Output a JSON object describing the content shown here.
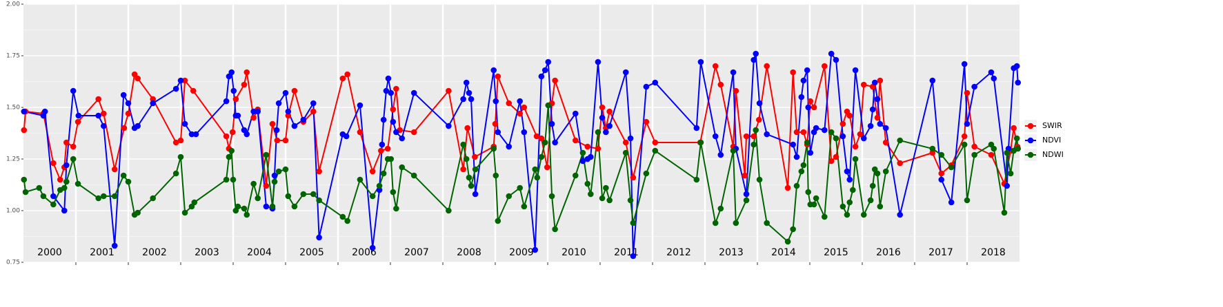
{
  "chart_data": {
    "type": "line",
    "xlim": [
      2000,
      2019
    ],
    "xticks": [
      2001,
      2002,
      2003,
      2004,
      2005,
      2006,
      2007,
      2008,
      2009,
      2010,
      2011,
      2012,
      2013,
      2014,
      2015,
      2016,
      2017,
      2018
    ],
    "year_labels": [
      "2000",
      "2001",
      "2002",
      "2003",
      "2004",
      "2005",
      "2006",
      "2007",
      "2008",
      "2009",
      "2010",
      "2011",
      "2012",
      "2013",
      "2014",
      "2015",
      "2016",
      "2017",
      "2018"
    ],
    "ylim": [
      0.75,
      2.0
    ],
    "yticks": [
      0.75,
      {
        "value": 1.0,
        "label": "1.00"
      },
      1.25,
      {
        "value": 1.5,
        "label": "1.50"
      },
      1.75,
      {
        "value": 2.0,
        "label": "2.00"
      }
    ],
    "grid": true,
    "legend": "right",
    "series": [
      {
        "name": "SWIR",
        "color": "#ff0000",
        "x": [
          2000.01,
          2000.04,
          2000.38,
          2000.57,
          2000.7,
          2000.78,
          2000.82,
          2000.95,
          2001.04,
          2001.43,
          2001.53,
          2001.74,
          2001.92,
          2002.0,
          2002.12,
          2002.18,
          2002.47,
          2002.91,
          2003.0,
          2003.08,
          2003.24,
          2003.87,
          2003.92,
          2003.99,
          2004.05,
          2004.21,
          2004.26,
          2004.39,
          2004.47,
          2004.63,
          2004.75,
          2004.84,
          2005.0,
          2005.05,
          2005.17,
          2005.34,
          2005.53,
          2005.64,
          2006.09,
          2006.18,
          2006.42,
          2006.66,
          2006.82,
          2006.95,
          2007.05,
          2007.11,
          2007.18,
          2007.45,
          2008.11,
          2008.39,
          2008.47,
          2008.61,
          2008.97,
          2009.0,
          2009.05,
          2009.26,
          2009.47,
          2009.55,
          2009.79,
          2009.88,
          2009.99,
          2010.08,
          2010.14,
          2010.53,
          2010.76,
          2010.96,
          2011.04,
          2011.11,
          2011.18,
          2011.49,
          2011.63,
          2011.88,
          2012.05,
          2012.91,
          2013.2,
          2013.3,
          2013.54,
          2013.59,
          2013.76,
          2013.79,
          2013.93,
          2014.03,
          2014.18,
          2014.58,
          2014.68,
          2014.75,
          2014.88,
          2014.95,
          2015.01,
          2015.08,
          2015.28,
          2015.41,
          2015.5,
          2015.63,
          2015.71,
          2015.76,
          2015.87,
          2015.96,
          2016.03,
          2016.2,
          2016.29,
          2016.34,
          2016.45,
          2016.72,
          2017.34,
          2017.51,
          2017.7,
          2017.95,
          2018.0,
          2018.14,
          2018.46,
          2018.71,
          2018.83,
          2018.89,
          2018.96
        ],
        "values": [
          1.39,
          1.48,
          1.47,
          1.23,
          1.15,
          1.21,
          1.33,
          1.31,
          1.43,
          1.54,
          1.47,
          1.2,
          1.4,
          1.47,
          1.66,
          1.64,
          1.54,
          1.33,
          1.34,
          1.63,
          1.58,
          1.36,
          1.3,
          1.38,
          1.54,
          1.61,
          1.67,
          1.45,
          1.49,
          1.12,
          1.42,
          1.34,
          1.34,
          1.46,
          1.58,
          1.43,
          1.48,
          1.19,
          1.64,
          1.66,
          1.38,
          1.19,
          1.29,
          1.3,
          1.49,
          1.59,
          1.39,
          1.38,
          1.58,
          1.2,
          1.4,
          1.26,
          1.31,
          1.42,
          1.65,
          1.52,
          1.47,
          1.5,
          1.36,
          1.35,
          1.21,
          1.52,
          1.63,
          1.34,
          1.31,
          1.3,
          1.5,
          1.4,
          1.48,
          1.33,
          1.16,
          1.43,
          1.33,
          1.33,
          1.7,
          1.61,
          1.31,
          1.58,
          1.17,
          1.36,
          1.36,
          1.44,
          1.7,
          1.11,
          1.67,
          1.38,
          1.38,
          1.32,
          1.53,
          1.5,
          1.7,
          1.24,
          1.26,
          1.42,
          1.48,
          1.46,
          1.31,
          1.37,
          1.61,
          1.6,
          1.45,
          1.63,
          1.33,
          1.23,
          1.28,
          1.18,
          1.22,
          1.36,
          1.57,
          1.31,
          1.27,
          1.13,
          1.29,
          1.4,
          1.31
        ]
      },
      {
        "name": "NDVI",
        "color": "#0000ff",
        "x": [
          2000.01,
          2000.38,
          2000.41,
          2000.57,
          2000.78,
          2000.82,
          2000.95,
          2001.05,
          2001.43,
          2001.53,
          2001.74,
          2001.91,
          2002.0,
          2002.12,
          2002.18,
          2002.47,
          2002.91,
          2003.0,
          2003.08,
          2003.21,
          2003.29,
          2003.87,
          2003.92,
          2003.97,
          2004.01,
          2004.05,
          2004.09,
          2004.21,
          2004.26,
          2004.39,
          2004.47,
          2004.63,
          2004.75,
          2004.79,
          2004.83,
          2004.87,
          2005.0,
          2005.05,
          2005.17,
          2005.34,
          2005.53,
          2005.64,
          2006.09,
          2006.16,
          2006.42,
          2006.66,
          2006.79,
          2006.84,
          2006.87,
          2006.92,
          2006.96,
          2007.01,
          2007.05,
          2007.11,
          2007.22,
          2007.45,
          2008.11,
          2008.39,
          2008.45,
          2008.5,
          2008.54,
          2008.62,
          2008.97,
          2009.01,
          2009.05,
          2009.26,
          2009.47,
          2009.55,
          2009.76,
          2009.88,
          2009.95,
          2010.01,
          2010.08,
          2010.14,
          2010.53,
          2010.67,
          2010.76,
          2010.82,
          2010.96,
          2011.04,
          2011.11,
          2011.18,
          2011.49,
          2011.58,
          2011.63,
          2011.88,
          2012.05,
          2012.84,
          2012.92,
          2013.2,
          2013.3,
          2013.54,
          2013.59,
          2013.79,
          2013.93,
          2013.97,
          2014.04,
          2014.18,
          2014.68,
          2014.75,
          2014.84,
          2014.88,
          2014.95,
          2014.97,
          2015.01,
          2015.08,
          2015.12,
          2015.28,
          2015.41,
          2015.5,
          2015.63,
          2015.71,
          2015.76,
          2015.87,
          2016.03,
          2016.16,
          2016.2,
          2016.24,
          2016.29,
          2016.34,
          2016.45,
          2016.72,
          2017.34,
          2017.51,
          2017.7,
          2017.95,
          2018.0,
          2018.14,
          2018.46,
          2018.51,
          2018.76,
          2018.79,
          2018.89,
          2018.95,
          2018.97
        ],
        "values": [
          1.48,
          1.46,
          1.48,
          1.07,
          1.0,
          1.22,
          1.58,
          1.46,
          1.46,
          1.41,
          0.83,
          1.56,
          1.52,
          1.4,
          1.41,
          1.52,
          1.59,
          1.63,
          1.42,
          1.37,
          1.37,
          1.53,
          1.65,
          1.67,
          1.58,
          1.46,
          1.46,
          1.39,
          1.37,
          1.48,
          1.48,
          1.02,
          1.01,
          1.17,
          1.39,
          1.52,
          1.57,
          1.48,
          1.41,
          1.44,
          1.52,
          0.87,
          1.37,
          1.36,
          1.51,
          0.82,
          1.1,
          1.32,
          1.44,
          1.58,
          1.64,
          1.57,
          1.43,
          1.38,
          1.35,
          1.57,
          1.41,
          1.54,
          1.62,
          1.57,
          1.54,
          1.08,
          1.68,
          1.53,
          1.38,
          1.31,
          1.53,
          1.38,
          0.81,
          1.65,
          1.68,
          1.72,
          1.42,
          1.33,
          1.47,
          1.24,
          1.25,
          1.26,
          1.72,
          1.45,
          1.38,
          1.41,
          1.67,
          1.35,
          0.78,
          1.6,
          1.62,
          1.4,
          1.72,
          1.36,
          1.27,
          1.67,
          1.3,
          1.08,
          1.73,
          1.76,
          1.52,
          1.37,
          1.32,
          1.26,
          1.55,
          1.63,
          1.68,
          1.5,
          1.28,
          1.38,
          1.4,
          1.39,
          1.76,
          1.73,
          1.36,
          1.19,
          1.15,
          1.68,
          1.35,
          1.41,
          1.49,
          1.62,
          1.54,
          1.42,
          1.4,
          0.98,
          1.63,
          1.15,
          1.04,
          1.71,
          1.42,
          1.6,
          1.67,
          1.64,
          1.12,
          1.3,
          1.69,
          1.7,
          1.62
        ]
      },
      {
        "name": "NDWI",
        "color": "#006400",
        "x": [
          2000.01,
          2000.04,
          2000.3,
          2000.38,
          2000.57,
          2000.7,
          2000.78,
          2000.82,
          2000.95,
          2001.04,
          2001.43,
          2001.53,
          2001.74,
          2001.91,
          2002.0,
          2002.12,
          2002.18,
          2002.47,
          2002.91,
          2003.0,
          2003.08,
          2003.21,
          2003.26,
          2003.87,
          2003.92,
          2003.97,
          2004.0,
          2004.05,
          2004.09,
          2004.21,
          2004.26,
          2004.39,
          2004.47,
          2004.63,
          2004.75,
          2004.79,
          2004.87,
          2005.0,
          2005.05,
          2005.17,
          2005.34,
          2005.53,
          2005.64,
          2006.09,
          2006.18,
          2006.42,
          2006.66,
          2006.79,
          2006.87,
          2006.95,
          2007.01,
          2007.05,
          2007.11,
          2007.22,
          2007.45,
          2008.11,
          2008.39,
          2008.45,
          2008.5,
          2008.54,
          2008.62,
          2008.97,
          2009.01,
          2009.05,
          2009.26,
          2009.47,
          2009.55,
          2009.76,
          2009.8,
          2009.88,
          2009.95,
          2010.01,
          2010.08,
          2010.14,
          2010.53,
          2010.67,
          2010.76,
          2010.82,
          2010.96,
          2011.04,
          2011.11,
          2011.18,
          2011.49,
          2011.58,
          2011.63,
          2011.88,
          2012.05,
          2012.84,
          2012.92,
          2013.2,
          2013.3,
          2013.54,
          2013.59,
          2013.79,
          2013.93,
          2013.97,
          2014.04,
          2014.18,
          2014.58,
          2014.68,
          2014.75,
          2014.84,
          2014.88,
          2014.95,
          2014.97,
          2015.01,
          2015.08,
          2015.12,
          2015.28,
          2015.41,
          2015.5,
          2015.63,
          2015.71,
          2015.76,
          2015.82,
          2015.87,
          2016.03,
          2016.16,
          2016.2,
          2016.24,
          2016.29,
          2016.34,
          2016.45,
          2016.72,
          2017.34,
          2017.51,
          2017.7,
          2017.95,
          2018.0,
          2018.14,
          2018.46,
          2018.51,
          2018.71,
          2018.76,
          2018.83,
          2018.89,
          2018.95,
          2018.97
        ],
        "values": [
          1.15,
          1.09,
          1.11,
          1.07,
          1.03,
          1.1,
          1.11,
          1.14,
          1.25,
          1.13,
          1.06,
          1.07,
          1.07,
          1.17,
          1.14,
          0.98,
          0.99,
          1.06,
          1.18,
          1.26,
          0.99,
          1.02,
          1.04,
          1.15,
          1.26,
          1.29,
          1.15,
          1.0,
          1.02,
          1.01,
          0.98,
          1.13,
          1.06,
          1.27,
          1.02,
          1.14,
          1.19,
          1.2,
          1.07,
          1.02,
          1.08,
          1.08,
          1.05,
          0.97,
          0.95,
          1.15,
          1.07,
          1.12,
          1.18,
          1.25,
          1.25,
          1.09,
          1.01,
          1.21,
          1.17,
          1.0,
          1.32,
          1.25,
          1.16,
          1.12,
          1.2,
          1.3,
          1.17,
          0.95,
          1.07,
          1.11,
          1.02,
          1.2,
          1.16,
          1.26,
          1.33,
          1.51,
          1.07,
          0.91,
          1.17,
          1.28,
          1.13,
          1.08,
          1.38,
          1.06,
          1.11,
          1.05,
          1.28,
          1.05,
          0.94,
          1.18,
          1.29,
          1.15,
          1.33,
          0.94,
          1.01,
          1.29,
          0.94,
          1.05,
          1.32,
          1.39,
          1.15,
          0.94,
          0.85,
          0.91,
          1.12,
          1.19,
          1.22,
          1.33,
          1.09,
          1.03,
          1.03,
          1.06,
          0.97,
          1.38,
          1.35,
          1.02,
          0.98,
          1.04,
          1.1,
          1.25,
          0.98,
          1.05,
          1.12,
          1.2,
          1.18,
          1.02,
          1.19,
          1.34,
          1.3,
          1.27,
          1.21,
          1.32,
          1.05,
          1.27,
          1.32,
          1.3,
          0.99,
          1.28,
          1.18,
          1.29,
          1.35,
          1.3
        ]
      }
    ]
  }
}
